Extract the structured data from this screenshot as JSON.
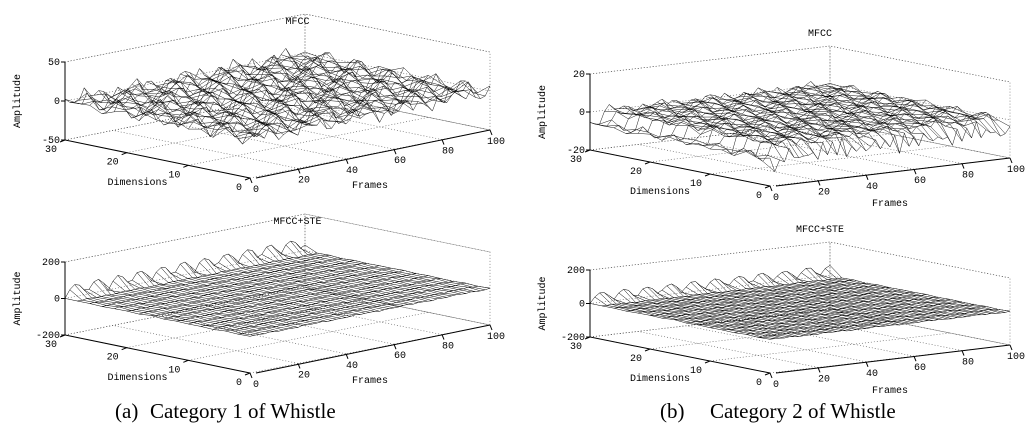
{
  "panels": [
    {
      "label": "(a)",
      "caption": "Category 1 of Whistle",
      "plots": [
        {
          "title": "MFCC",
          "zlabel": "Amplitude",
          "ylabel": "Dimensions",
          "xlabel": "Frames",
          "zlim": [
            -50,
            50
          ],
          "zticks": [
            -50,
            0,
            50
          ],
          "ylim": [
            0,
            30
          ],
          "yticks": [
            0,
            10,
            20,
            30
          ],
          "xlim": [
            0,
            100
          ],
          "xticks": [
            0,
            20,
            40,
            60,
            80,
            100
          ]
        },
        {
          "title": "MFCC+STE",
          "zlabel": "Amplitude",
          "ylabel": "Dimensions",
          "xlabel": "Frames",
          "zlim": [
            -200,
            200
          ],
          "zticks": [
            -200,
            0,
            200
          ],
          "ylim": [
            0,
            30
          ],
          "yticks": [
            0,
            10,
            20,
            30
          ],
          "xlim": [
            0,
            100
          ],
          "xticks": [
            0,
            20,
            40,
            60,
            80,
            100
          ]
        }
      ]
    },
    {
      "label": "(b)",
      "caption": "Category 2 of Whistle",
      "plots": [
        {
          "title": "MFCC",
          "zlabel": "Amplitude",
          "ylabel": "Dimensions",
          "xlabel": "Frames",
          "zlim": [
            -20,
            20
          ],
          "zticks": [
            -20,
            0,
            20
          ],
          "ylim": [
            0,
            30
          ],
          "yticks": [
            0,
            10,
            20,
            30
          ],
          "xlim": [
            0,
            100
          ],
          "xticks": [
            0,
            20,
            40,
            60,
            80,
            100
          ]
        },
        {
          "title": "MFCC+STE",
          "zlabel": "Amplitude",
          "ylabel": "Dimensions",
          "xlabel": "Frames",
          "zlim": [
            -200,
            200
          ],
          "zticks": [
            -200,
            0,
            200
          ],
          "ylim": [
            0,
            30
          ],
          "yticks": [
            0,
            10,
            20,
            30
          ],
          "xlim": [
            0,
            100
          ],
          "xticks": [
            0,
            20,
            40,
            60,
            80,
            100
          ]
        }
      ]
    }
  ]
}
